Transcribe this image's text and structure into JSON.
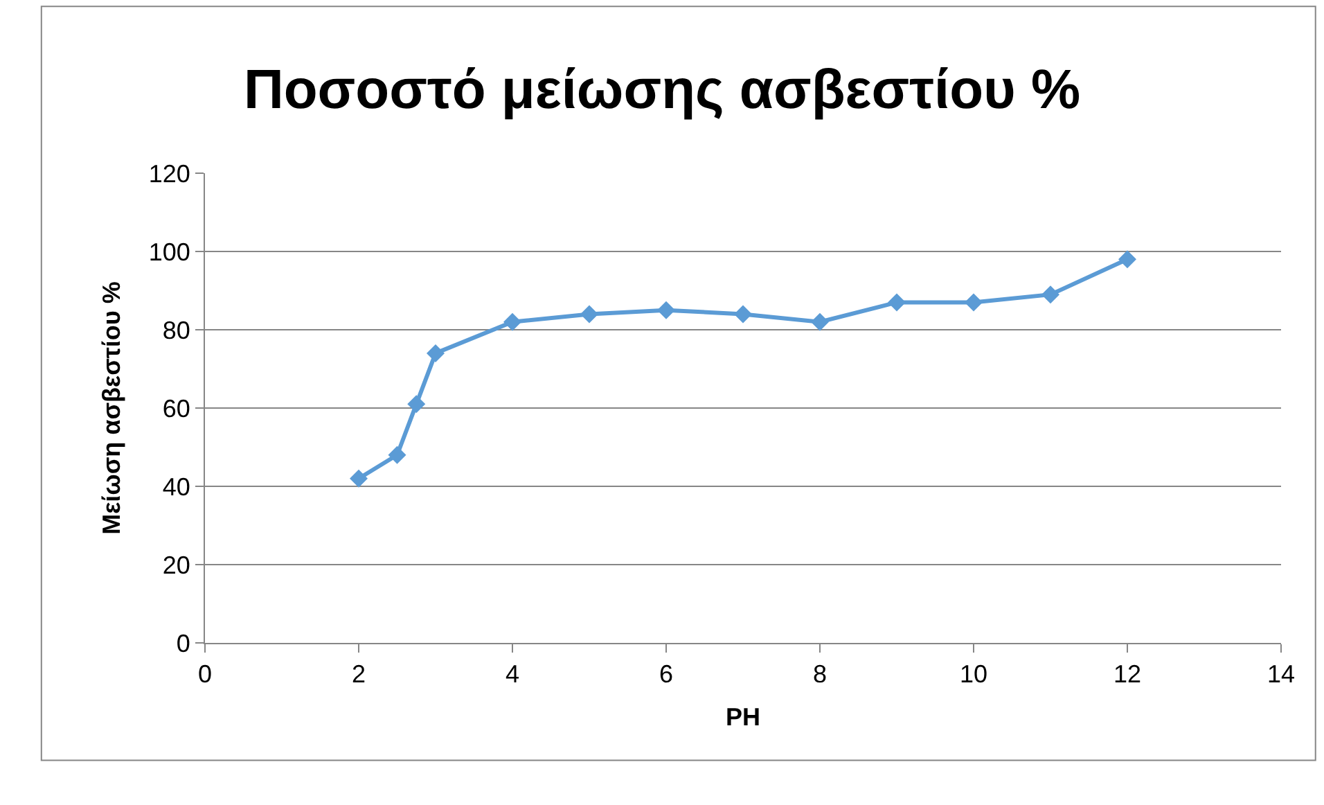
{
  "chart_data": {
    "type": "line",
    "title": "Ποσοστό μείωσης ασβεστίου %",
    "xlabel": "PH",
    "ylabel": "Μείωση ασβεστίου %",
    "x": [
      2,
      2.5,
      2.75,
      3,
      4,
      5,
      6,
      7,
      8,
      9,
      10,
      11,
      12
    ],
    "series": [
      {
        "color": "#5b9bd5",
        "values": [
          42,
          48,
          61,
          74,
          82,
          84,
          85,
          84,
          82,
          87,
          87,
          89,
          98
        ]
      }
    ],
    "xlim": [
      0,
      14
    ],
    "xticks": [
      0,
      2,
      4,
      6,
      8,
      10,
      12,
      14
    ],
    "ylim": [
      0,
      120
    ],
    "yticks": [
      0,
      20,
      40,
      60,
      80,
      100,
      120
    ],
    "grid": "y",
    "legend": false,
    "marker": "diamond",
    "line_style": "solid"
  }
}
